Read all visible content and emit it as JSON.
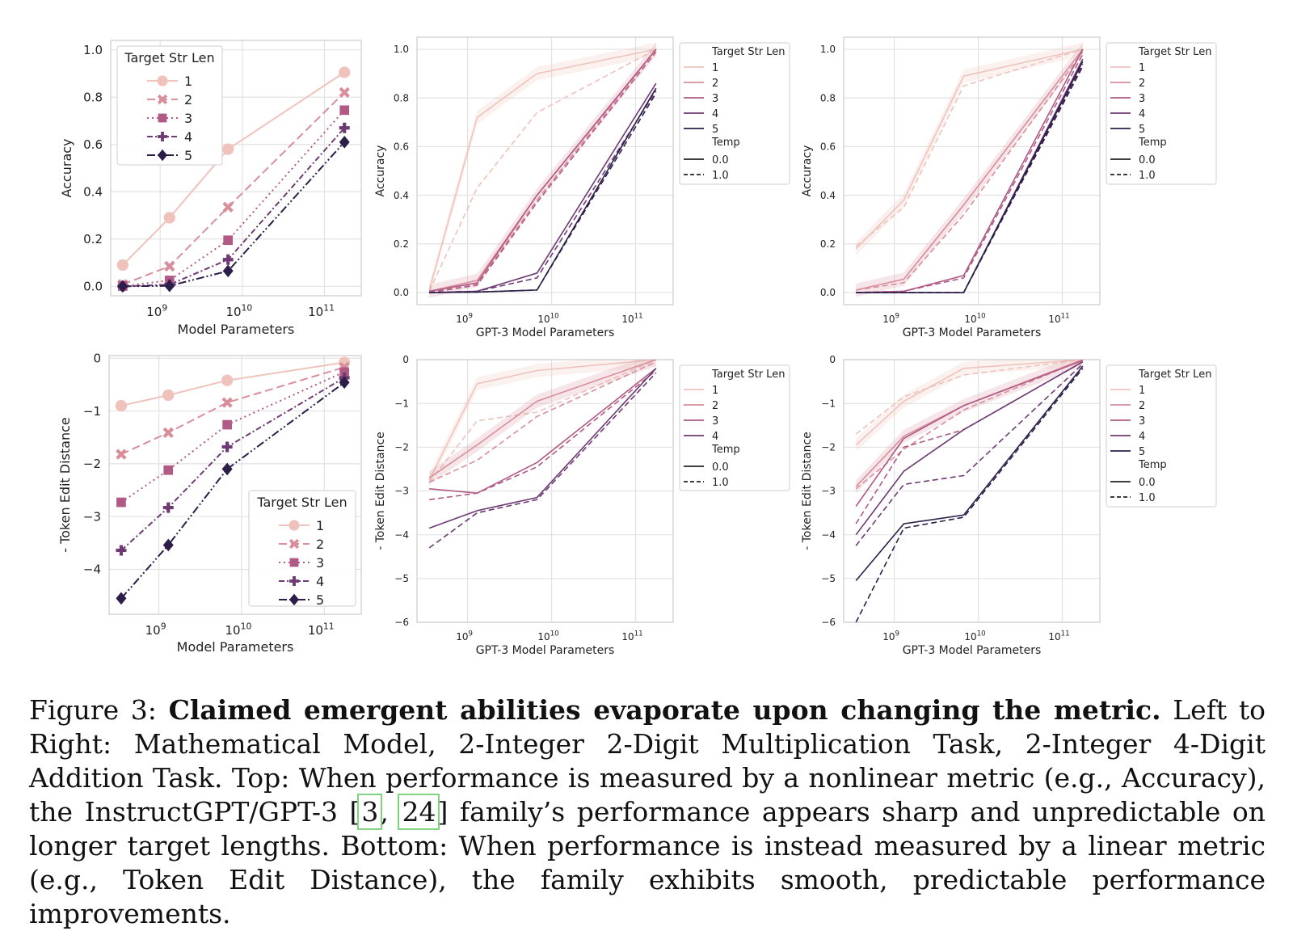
{
  "legend_titles": {
    "target": "Target Str Len",
    "temp": "Temp"
  },
  "temp_labels": [
    "0.0",
    "1.0"
  ],
  "colors": [
    "#efc3bb",
    "#d88e9b",
    "#b05a85",
    "#6e3a73",
    "#2c1e49"
  ],
  "caption": {
    "figure_label": "Figure 3:",
    "bold": "Claimed emergent abilities evaporate upon changing the metric.",
    "text1": "Left to Right: Mathematical Model, 2-Integer 2-Digit Multiplication Task, 2-Integer 4-Digit Addition Task. Top: When performance is measured by a nonlinear metric (e.g., Accuracy), the InstructGPT/GPT-3 [",
    "ref1": "3",
    "sep": ", ",
    "ref2": "24",
    "text2": "] family’s performance appears sharp and unpredictable on longer target lengths. Bottom: When performance is instead measured by a linear metric (e.g., Token Edit Distance), the family exhibits smooth, predictable performance improvements."
  },
  "chart_data": [
    {
      "id": "math-accuracy",
      "type": "line",
      "xlabel": "Model Parameters",
      "ylabel": "Accuracy",
      "xscale": "log",
      "xlim": [
        250000000.0,
        280000000000.0
      ],
      "ylim": [
        -0.04,
        1.04
      ],
      "yticks": [
        0.0,
        0.2,
        0.4,
        0.6,
        0.8,
        1.0
      ],
      "ytick_labels": [
        "0.0",
        "0.2",
        "0.4",
        "0.6",
        "0.8",
        "1.0"
      ],
      "x": [
        350000000.0,
        1300000000.0,
        6700000000.0,
        175000000000.0
      ],
      "legend_position": "upper-left",
      "series": [
        {
          "name": "1",
          "values": [
            0.09,
            0.29,
            0.58,
            0.905
          ]
        },
        {
          "name": "2",
          "values": [
            0.008,
            0.085,
            0.335,
            0.82
          ]
        },
        {
          "name": "3",
          "values": [
            0.001,
            0.025,
            0.195,
            0.745
          ]
        },
        {
          "name": "4",
          "values": [
            0.0,
            0.007,
            0.113,
            0.67
          ]
        },
        {
          "name": "5",
          "values": [
            0.0,
            0.002,
            0.065,
            0.61
          ]
        }
      ]
    },
    {
      "id": "mult-accuracy",
      "type": "line",
      "xlabel": "GPT-3 Model Parameters",
      "ylabel": "Accuracy",
      "xscale": "log",
      "xlim": [
        250000000.0,
        280000000000.0
      ],
      "ylim": [
        -0.05,
        1.05
      ],
      "yticks": [
        0.0,
        0.2,
        0.4,
        0.6,
        0.8,
        1.0
      ],
      "ytick_labels": [
        "0.0",
        "0.2",
        "0.4",
        "0.6",
        "0.8",
        "1.0"
      ],
      "x": [
        350000000.0,
        1300000000.0,
        6700000000.0,
        175000000000.0
      ],
      "legend_position": "outside-right",
      "series": [
        {
          "name": "1",
          "temp": "0.0",
          "values": [
            0.01,
            0.72,
            0.9,
            1.0
          ]
        },
        {
          "name": "1",
          "temp": "1.0",
          "values": [
            0.005,
            0.43,
            0.74,
            1.0
          ]
        },
        {
          "name": "2",
          "temp": "0.0",
          "values": [
            0.005,
            0.05,
            0.4,
            1.0
          ]
        },
        {
          "name": "2",
          "temp": "1.0",
          "values": [
            0.0,
            0.035,
            0.38,
            1.0
          ]
        },
        {
          "name": "3",
          "temp": "0.0",
          "values": [
            0.005,
            0.04,
            0.4,
            1.0
          ]
        },
        {
          "name": "3",
          "temp": "1.0",
          "values": [
            0.0,
            0.03,
            0.37,
            0.99
          ]
        },
        {
          "name": "4",
          "temp": "0.0",
          "values": [
            0.0,
            0.005,
            0.08,
            0.86
          ]
        },
        {
          "name": "4",
          "temp": "1.0",
          "values": [
            0.0,
            0.005,
            0.06,
            0.83
          ]
        },
        {
          "name": "5",
          "temp": "0.0",
          "values": [
            0.0,
            0.002,
            0.01,
            0.84
          ]
        },
        {
          "name": "5",
          "temp": "1.0",
          "values": [
            0.0,
            0.002,
            0.01,
            0.82
          ]
        }
      ]
    },
    {
      "id": "add-accuracy",
      "type": "line",
      "xlabel": "GPT-3 Model Parameters",
      "ylabel": "Accuracy",
      "xscale": "log",
      "xlim": [
        250000000.0,
        280000000000.0
      ],
      "ylim": [
        -0.05,
        1.05
      ],
      "yticks": [
        0.0,
        0.2,
        0.4,
        0.6,
        0.8,
        1.0
      ],
      "ytick_labels": [
        "0.0",
        "0.2",
        "0.4",
        "0.6",
        "0.8",
        "1.0"
      ],
      "x": [
        350000000.0,
        1300000000.0,
        6700000000.0,
        175000000000.0
      ],
      "legend_position": "outside-right",
      "series": [
        {
          "name": "1",
          "temp": "0.0",
          "values": [
            0.18,
            0.38,
            0.89,
            1.0
          ]
        },
        {
          "name": "1",
          "temp": "1.0",
          "values": [
            0.19,
            0.35,
            0.85,
            1.0
          ]
        },
        {
          "name": "2",
          "temp": "0.0",
          "values": [
            0.01,
            0.055,
            0.36,
            1.0
          ]
        },
        {
          "name": "2",
          "temp": "1.0",
          "values": [
            0.01,
            0.04,
            0.32,
            0.99
          ]
        },
        {
          "name": "3",
          "temp": "0.0",
          "values": [
            0.0,
            0.005,
            0.07,
            1.0
          ]
        },
        {
          "name": "3",
          "temp": "1.0",
          "values": [
            0.0,
            0.005,
            0.06,
            0.98
          ]
        },
        {
          "name": "4",
          "temp": "0.0",
          "values": [
            0.0,
            0.0,
            0.0,
            0.96
          ]
        },
        {
          "name": "4",
          "temp": "1.0",
          "values": [
            0.0,
            0.0,
            0.0,
            0.94
          ]
        },
        {
          "name": "5",
          "temp": "0.0",
          "values": [
            0.0,
            0.0,
            0.0,
            0.95
          ]
        },
        {
          "name": "5",
          "temp": "1.0",
          "values": [
            0.0,
            0.0,
            0.0,
            0.93
          ]
        }
      ]
    },
    {
      "id": "math-ted",
      "type": "line",
      "xlabel": "Model Parameters",
      "ylabel": "- Token Edit Distance",
      "xscale": "log",
      "xlim": [
        250000000.0,
        280000000000.0
      ],
      "ylim": [
        -4.85,
        0.05
      ],
      "yticks": [
        0,
        -1,
        -2,
        -3,
        -4
      ],
      "ytick_labels": [
        "0",
        "−1",
        "−2",
        "−3",
        "−4"
      ],
      "x": [
        350000000.0,
        1300000000.0,
        6700000000.0,
        175000000000.0
      ],
      "legend_position": "lower-right",
      "series": [
        {
          "name": "1",
          "values": [
            -0.9,
            -0.7,
            -0.42,
            -0.08
          ]
        },
        {
          "name": "2",
          "values": [
            -1.82,
            -1.41,
            -0.84,
            -0.17
          ]
        },
        {
          "name": "3",
          "values": [
            -2.73,
            -2.12,
            -1.26,
            -0.26
          ]
        },
        {
          "name": "4",
          "values": [
            -3.64,
            -2.83,
            -1.68,
            -0.37
          ]
        },
        {
          "name": "5",
          "values": [
            -4.55,
            -3.54,
            -2.1,
            -0.46
          ]
        }
      ]
    },
    {
      "id": "mult-ted",
      "type": "line",
      "xlabel": "GPT-3 Model Parameters",
      "ylabel": "- Token Edit Distance",
      "xscale": "log",
      "xlim": [
        250000000.0,
        280000000000.0
      ],
      "ylim": [
        -6.0,
        0.0
      ],
      "yticks": [
        0,
        -1,
        -2,
        -3,
        -4,
        -5,
        -6
      ],
      "ytick_labels": [
        "0",
        "−1",
        "−2",
        "−3",
        "−4",
        "−5",
        "−6"
      ],
      "x": [
        350000000.0,
        1300000000.0,
        6700000000.0,
        175000000000.0
      ],
      "legend_position": "outside-right",
      "series": [
        {
          "name": "1",
          "temp": "0.0",
          "values": [
            -2.75,
            -0.55,
            -0.25,
            0.0
          ]
        },
        {
          "name": "1",
          "temp": "1.0",
          "values": [
            -2.8,
            -1.4,
            -1.2,
            0.0
          ]
        },
        {
          "name": "2",
          "temp": "0.0",
          "values": [
            -2.7,
            -1.95,
            -0.95,
            0.0
          ]
        },
        {
          "name": "2",
          "temp": "1.0",
          "values": [
            -2.8,
            -2.3,
            -1.3,
            -0.05
          ]
        },
        {
          "name": "3",
          "temp": "0.0",
          "values": [
            -2.95,
            -3.05,
            -2.35,
            -0.2
          ]
        },
        {
          "name": "3",
          "temp": "1.0",
          "values": [
            -3.2,
            -3.05,
            -2.45,
            -0.25
          ]
        },
        {
          "name": "4",
          "temp": "0.0",
          "values": [
            -3.85,
            -3.45,
            -3.15,
            -0.2
          ]
        },
        {
          "name": "4",
          "temp": "1.0",
          "values": [
            -4.3,
            -3.5,
            -3.2,
            -0.3
          ]
        }
      ]
    },
    {
      "id": "add-ted",
      "type": "line",
      "xlabel": "GPT-3 Model Parameters",
      "ylabel": "- Token Edit Distance",
      "xscale": "log",
      "xlim": [
        250000000.0,
        280000000000.0
      ],
      "ylim": [
        -6.0,
        0.0
      ],
      "yticks": [
        0,
        -1,
        -2,
        -3,
        -4,
        -5,
        -6
      ],
      "ytick_labels": [
        "0",
        "−1",
        "−2",
        "−3",
        "−4",
        "−5",
        "−6"
      ],
      "x": [
        350000000.0,
        1300000000.0,
        6700000000.0,
        175000000000.0
      ],
      "legend_position": "outside-right",
      "series": [
        {
          "name": "1",
          "temp": "0.0",
          "values": [
            -1.95,
            -0.95,
            -0.2,
            0.0
          ]
        },
        {
          "name": "1",
          "temp": "1.0",
          "values": [
            -1.7,
            -0.85,
            -0.35,
            0.0
          ]
        },
        {
          "name": "2",
          "temp": "0.0",
          "values": [
            -2.9,
            -1.75,
            -1.05,
            0.0
          ]
        },
        {
          "name": "2",
          "temp": "1.0",
          "values": [
            -2.95,
            -2.05,
            -1.15,
            0.0
          ]
        },
        {
          "name": "3",
          "temp": "0.0",
          "values": [
            -3.35,
            -1.8,
            -1.05,
            -0.02
          ]
        },
        {
          "name": "3",
          "temp": "1.0",
          "values": [
            -3.75,
            -2.0,
            -1.6,
            -0.05
          ]
        },
        {
          "name": "4",
          "temp": "0.0",
          "values": [
            -4.0,
            -2.55,
            -1.6,
            -0.05
          ]
        },
        {
          "name": "4",
          "temp": "1.0",
          "values": [
            -4.25,
            -2.85,
            -2.65,
            -0.1
          ]
        },
        {
          "name": "5",
          "temp": "0.0",
          "values": [
            -5.05,
            -3.75,
            -3.55,
            -0.15
          ]
        },
        {
          "name": "5",
          "temp": "1.0",
          "values": [
            -6.0,
            -3.85,
            -3.6,
            -0.2
          ]
        }
      ]
    }
  ]
}
